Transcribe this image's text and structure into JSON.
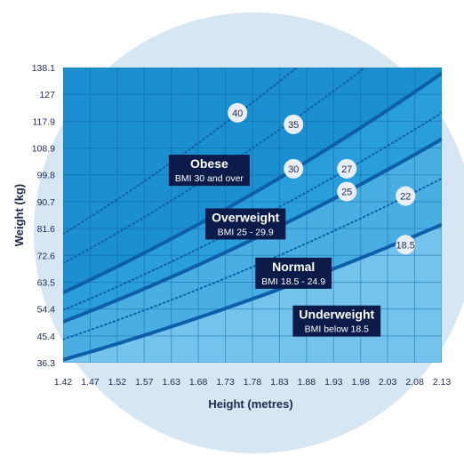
{
  "chart_data": {
    "type": "line",
    "xlabel": "Height (metres)",
    "ylabel": "Weight (kg)",
    "xlim": [
      1.42,
      2.13
    ],
    "ylim": [
      36.3,
      138.1
    ],
    "x_ticks": [
      "1.42",
      "1.47",
      "1.52",
      "1.57",
      "1.63",
      "1.68",
      "1.73",
      "1.78",
      "1.83",
      "1.88",
      "1.93",
      "1.98",
      "2.03",
      "2.08",
      "2.13"
    ],
    "y_ticks": [
      "138.1",
      "127",
      "117.9",
      "108.9",
      "99.8",
      "90.7",
      "81.6",
      "72.6",
      "63.5",
      "54.4",
      "45.4",
      "36.3"
    ],
    "grid": true,
    "bmi_lines": [
      {
        "bmi": 18.5,
        "style": "solid"
      },
      {
        "bmi": 22,
        "style": "dotted"
      },
      {
        "bmi": 25,
        "style": "solid"
      },
      {
        "bmi": 27,
        "style": "dotted"
      },
      {
        "bmi": 30,
        "style": "solid"
      },
      {
        "bmi": 35,
        "style": "dotted"
      },
      {
        "bmi": 40,
        "style": "dotted"
      }
    ],
    "bubbles": [
      {
        "text": "40",
        "x": 1.747,
        "y": 122.5
      },
      {
        "text": "35",
        "x": 1.852,
        "y": 118.5
      },
      {
        "text": "30",
        "x": 1.852,
        "y": 103.2
      },
      {
        "text": "27",
        "x": 1.952,
        "y": 103.2
      },
      {
        "text": "25",
        "x": 1.952,
        "y": 95.3
      },
      {
        "text": "22",
        "x": 2.062,
        "y": 93.8
      },
      {
        "text": "18.5",
        "x": 2.062,
        "y": 77.0
      }
    ],
    "category_labels": [
      {
        "title": "Obese",
        "subtitle": "BMI 30 and over",
        "x": 1.694,
        "y": 102.5
      },
      {
        "title": "Overweight",
        "subtitle": "BMI 25 - 29.9",
        "x": 1.762,
        "y": 84.0
      },
      {
        "title": "Normal",
        "subtitle": "BMI 18.5 - 24.9",
        "x": 1.852,
        "y": 67.0
      },
      {
        "title": "Underweight",
        "subtitle": "BMI below 18.5",
        "x": 1.933,
        "y": 50.5
      }
    ]
  },
  "colors": {
    "page": "#ffffff",
    "circle": "#d6e6f3",
    "obese": "#1b8fd0",
    "overweight": "#2a9ddb",
    "normal": "#49afe3",
    "underweight": "#73c3ec",
    "grid": "#0b5f9c",
    "line": "#0d5fa8",
    "label_box": "#0c1b4a",
    "bubble": "#e8eef4",
    "axis_text": "#1d2a4d"
  }
}
